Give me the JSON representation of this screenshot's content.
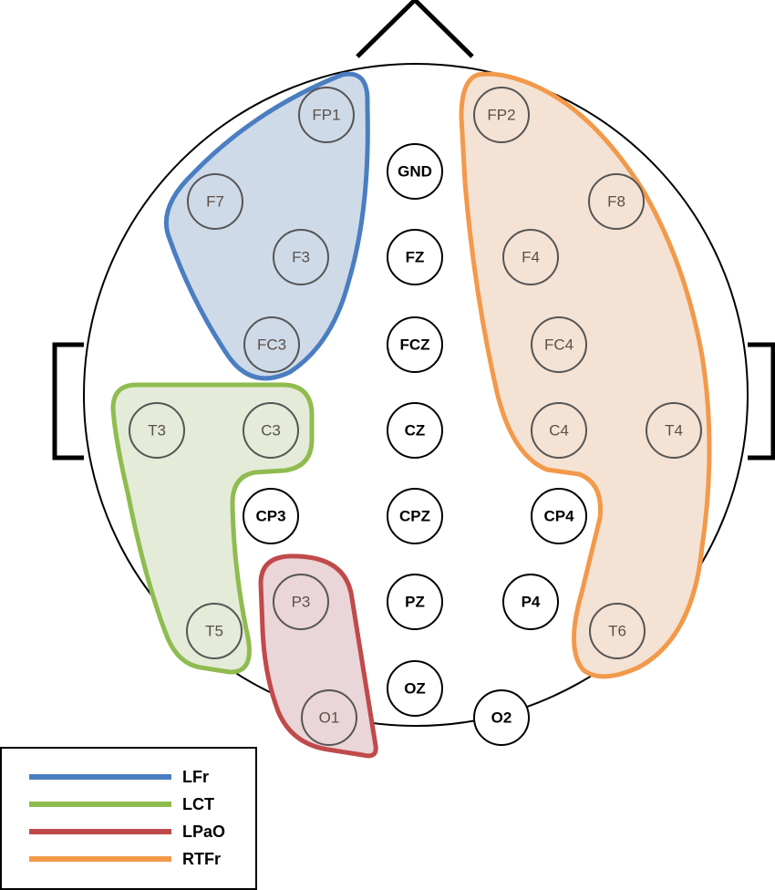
{
  "regions": [
    {
      "key": "LFr",
      "label": "LFr",
      "stroke": "#4a7ec0",
      "fill": "#cfdae9"
    },
    {
      "key": "LCT",
      "label": "LCT",
      "stroke": "#8fbc4f",
      "fill": "#e4ebd8"
    },
    {
      "key": "LPaO",
      "label": "LPaO",
      "stroke": "#c04a4a",
      "fill": "#ead5d8"
    },
    {
      "key": "RTFr",
      "label": "RTFr",
      "stroke": "#f2994a",
      "fill": "#f4e2d4"
    }
  ],
  "electrodes": [
    {
      "label": "FP1",
      "region": "LFr"
    },
    {
      "label": "F7",
      "region": "LFr"
    },
    {
      "label": "F3",
      "region": "LFr"
    },
    {
      "label": "FC3",
      "region": "LFr"
    },
    {
      "label": "T3",
      "region": "LCT"
    },
    {
      "label": "C3",
      "region": "LCT"
    },
    {
      "label": "T5",
      "region": "LCT"
    },
    {
      "label": "P3",
      "region": "LPaO"
    },
    {
      "label": "O1",
      "region": "LPaO"
    },
    {
      "label": "FP2",
      "region": "RTFr"
    },
    {
      "label": "F8",
      "region": "RTFr"
    },
    {
      "label": "F4",
      "region": "RTFr"
    },
    {
      "label": "FC4",
      "region": "RTFr"
    },
    {
      "label": "C4",
      "region": "RTFr"
    },
    {
      "label": "T4",
      "region": "RTFr"
    },
    {
      "label": "T6",
      "region": "RTFr"
    },
    {
      "label": "GND",
      "region": ""
    },
    {
      "label": "FZ",
      "region": ""
    },
    {
      "label": "FCZ",
      "region": ""
    },
    {
      "label": "CZ",
      "region": ""
    },
    {
      "label": "CPZ",
      "region": ""
    },
    {
      "label": "PZ",
      "region": ""
    },
    {
      "label": "OZ",
      "region": ""
    },
    {
      "label": "CP3",
      "region": ""
    },
    {
      "label": "CP4",
      "region": ""
    },
    {
      "label": "P4",
      "region": ""
    },
    {
      "label": "O2",
      "region": ""
    }
  ]
}
